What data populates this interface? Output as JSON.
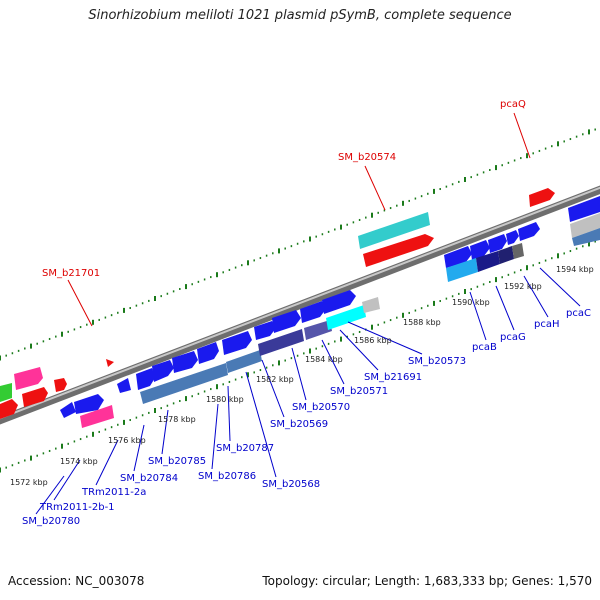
{
  "title": "Sinorhizobium meliloti 1021 plasmid pSymB, complete sequence",
  "footer": {
    "accession": "Accession: NC_003078",
    "stats": "Topology: circular; Length: 1,683,333 bp; Genes: 1,570"
  },
  "colors": {
    "backbone": "#8a8a8a",
    "ticks": "#1a7a1a",
    "red_label": "#dd0000",
    "blue_label": "#0000cc"
  },
  "scale_labels": [
    "1572 kbp",
    "1574 kbp",
    "1576 kbp",
    "1578 kbp",
    "1580 kbp",
    "1582 kbp",
    "1584 kbp",
    "1586 kbp",
    "1588 kbp",
    "1590 kbp",
    "1592 kbp",
    "1594 kbp"
  ],
  "red_labels": [
    "SM_b21701",
    "SM_b20574",
    "pcaQ"
  ],
  "blue_labels": [
    "SM_b20780",
    "TRm2011-2b-1",
    "TRm2011-2a",
    "SM_b20784",
    "SM_b20785",
    "SM_b20786",
    "SM_b20787",
    "SM_b20568",
    "SM_b20569",
    "SM_b20570",
    "SM_b20571",
    "SM_b21691",
    "SM_b20573",
    "pcaB",
    "pcaG",
    "pcaH",
    "pcaC"
  ]
}
